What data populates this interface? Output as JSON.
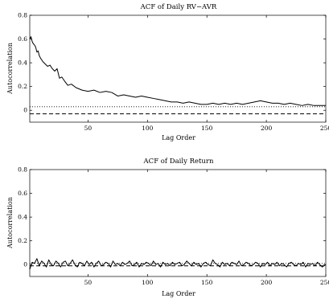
{
  "chart_data": [
    {
      "type": "line",
      "title": "ACF of Daily RV−AVR",
      "xlabel": "Lag Order",
      "ylabel": "Autocorrelation",
      "xlim": [
        1,
        250
      ],
      "ylim": [
        -0.1,
        0.8
      ],
      "xticks": [
        50,
        100,
        150,
        200,
        250
      ],
      "xtick_labels": [
        "50",
        "100",
        "150",
        "200",
        "250"
      ],
      "yticks": [
        0,
        0.2,
        0.4,
        0.6,
        0.8
      ],
      "ytick_labels": [
        "0",
        "0.2",
        "0.4",
        "0.6",
        "0.8"
      ],
      "grid": false,
      "series": [
        {
          "x": [
            1,
            2,
            3,
            4,
            5,
            6,
            7,
            8,
            9,
            10,
            12,
            14,
            16,
            18,
            20,
            22,
            24,
            26,
            28,
            30,
            33,
            36,
            40,
            45,
            50,
            55,
            60,
            65,
            70,
            75,
            80,
            85,
            90,
            95,
            100,
            105,
            110,
            115,
            120,
            125,
            130,
            135,
            140,
            145,
            150,
            155,
            160,
            165,
            170,
            175,
            180,
            185,
            190,
            195,
            200,
            205,
            210,
            215,
            220,
            225,
            230,
            235,
            240,
            245,
            250
          ],
          "values": [
            0.6,
            0.62,
            0.58,
            0.56,
            0.55,
            0.53,
            0.49,
            0.5,
            0.46,
            0.44,
            0.41,
            0.39,
            0.37,
            0.38,
            0.35,
            0.33,
            0.35,
            0.27,
            0.28,
            0.25,
            0.21,
            0.22,
            0.19,
            0.17,
            0.16,
            0.17,
            0.15,
            0.16,
            0.15,
            0.12,
            0.13,
            0.12,
            0.11,
            0.12,
            0.11,
            0.1,
            0.09,
            0.08,
            0.07,
            0.07,
            0.06,
            0.07,
            0.06,
            0.05,
            0.05,
            0.06,
            0.05,
            0.06,
            0.05,
            0.06,
            0.05,
            0.06,
            0.07,
            0.08,
            0.07,
            0.06,
            0.06,
            0.05,
            0.06,
            0.05,
            0.04,
            0.05,
            0.04,
            0.04,
            0.04
          ]
        }
      ],
      "hlines": [
        {
          "y": 0.03,
          "style": "dotted"
        },
        {
          "y": -0.03,
          "style": "dashed"
        }
      ]
    },
    {
      "type": "line",
      "title": "ACF of Daily Return",
      "xlabel": "Lag Order",
      "ylabel": "Autocorrelation",
      "xlim": [
        1,
        250
      ],
      "ylim": [
        -0.1,
        0.8
      ],
      "xticks": [
        50,
        100,
        150,
        200,
        250
      ],
      "xtick_labels": [
        "50",
        "100",
        "150",
        "200",
        "250"
      ],
      "yticks": [
        0,
        0.2,
        0.4,
        0.6,
        0.8
      ],
      "ytick_labels": [
        "0",
        "0.2",
        "0.4",
        "0.6",
        "0.8"
      ],
      "grid": false,
      "series": [
        {
          "x": [
            1,
            3,
            5,
            7,
            9,
            11,
            13,
            15,
            17,
            19,
            21,
            23,
            25,
            27,
            29,
            31,
            33,
            35,
            37,
            39,
            41,
            43,
            45,
            47,
            49,
            51,
            53,
            55,
            57,
            59,
            61,
            63,
            65,
            67,
            69,
            71,
            73,
            75,
            77,
            79,
            81,
            83,
            85,
            87,
            89,
            91,
            93,
            95,
            97,
            99,
            101,
            103,
            105,
            107,
            109,
            111,
            113,
            115,
            117,
            119,
            121,
            123,
            125,
            127,
            129,
            131,
            133,
            135,
            137,
            139,
            141,
            143,
            145,
            147,
            149,
            151,
            153,
            155,
            157,
            159,
            161,
            163,
            165,
            167,
            169,
            171,
            173,
            175,
            177,
            179,
            181,
            183,
            185,
            187,
            189,
            191,
            193,
            195,
            197,
            199,
            201,
            203,
            205,
            207,
            209,
            211,
            213,
            215,
            217,
            219,
            221,
            223,
            225,
            227,
            229,
            231,
            233,
            235,
            237,
            239,
            241,
            243,
            245,
            247,
            250
          ],
          "values": [
            -0.04,
            0.02,
            0.01,
            0.05,
            -0.01,
            0.03,
            0.01,
            -0.02,
            0.04,
            0.0,
            -0.01,
            0.03,
            0.01,
            -0.02,
            0.02,
            0.03,
            -0.01,
            0.01,
            0.04,
            0.0,
            -0.02,
            0.02,
            0.01,
            -0.01,
            0.03,
            0.0,
            0.02,
            -0.02,
            0.01,
            0.03,
            -0.01,
            0.0,
            0.02,
            0.01,
            -0.02,
            0.03,
            0.0,
            0.01,
            -0.01,
            0.02,
            0.0,
            0.01,
            0.03,
            -0.01,
            0.0,
            0.02,
            -0.02,
            0.01,
            0.0,
            0.02,
            0.01,
            -0.01,
            0.03,
            0.0,
            0.01,
            -0.02,
            0.02,
            0.0,
            0.01,
            -0.01,
            0.02,
            0.0,
            0.01,
            0.02,
            -0.01,
            0.0,
            0.03,
            0.01,
            -0.01,
            0.02,
            0.0,
            0.01,
            -0.02,
            0.01,
            0.02,
            0.0,
            -0.01,
            0.04,
            0.01,
            0.0,
            -0.02,
            0.02,
            0.0,
            0.01,
            -0.01,
            0.02,
            0.01,
            0.0,
            0.03,
            -0.01,
            0.0,
            0.02,
            0.01,
            -0.01,
            0.0,
            0.02,
            0.01,
            -0.02,
            0.01,
            0.0,
            0.02,
            -0.01,
            0.01,
            0.0,
            0.02,
            -0.01,
            0.01,
            0.0,
            -0.02,
            0.01,
            0.02,
            0.0,
            -0.01,
            0.01,
            0.0,
            0.02,
            -0.02,
            0.01,
            0.0,
            0.01,
            -0.01,
            0.02,
            0.0,
            -0.02,
            0.0
          ]
        }
      ],
      "hlines": [
        {
          "y": 0.01,
          "style": "dotted"
        },
        {
          "y": -0.01,
          "style": "dashed"
        }
      ]
    }
  ]
}
